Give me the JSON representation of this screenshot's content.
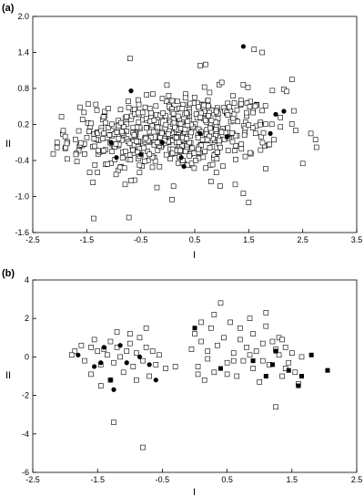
{
  "chart_data": [
    {
      "type": "scatter",
      "panel_label": "(a)",
      "xlabel": "I",
      "ylabel": "II",
      "xlim": [
        -2.5,
        3.5
      ],
      "ylim": [
        -1.6,
        2.0
      ],
      "x_ticks": [
        "-2.5",
        "-1.5",
        "-0.5",
        "0.5",
        "1.5",
        "2.5",
        "3.5"
      ],
      "y_ticks": [
        "-1.6",
        "-1.0",
        "-0.4",
        "0.2",
        "0.8",
        "1.4",
        "2.0"
      ],
      "grid": false,
      "markers": {
        "open": "open-square",
        "filled": "filled-circle"
      },
      "cloud_count": 560,
      "open_points": [
        [
          -1.9,
          0.0
        ],
        [
          -2.05,
          -0.1
        ],
        [
          -1.7,
          -0.3
        ],
        [
          -1.55,
          0.4
        ],
        [
          -0.7,
          1.3
        ],
        [
          -0.72,
          -1.35
        ],
        [
          0.7,
          1.2
        ],
        [
          0.6,
          1.18
        ],
        [
          1.6,
          1.45
        ],
        [
          1.75,
          1.4
        ],
        [
          2.3,
          0.95
        ],
        [
          2.2,
          0.75
        ],
        [
          2.65,
          0.05
        ],
        [
          2.5,
          -0.45
        ],
        [
          1.5,
          -1.1
        ],
        [
          1.4,
          -0.95
        ],
        [
          1.25,
          -0.8
        ],
        [
          0.08,
          -1.05
        ],
        [
          0.8,
          -0.75
        ],
        [
          -0.2,
          -0.85
        ],
        [
          1.0,
          0.9
        ],
        [
          0.9,
          -0.6
        ],
        [
          -1.3,
          -0.6
        ]
      ],
      "filled_points": [
        [
          1.4,
          1.5
        ],
        [
          -0.68,
          0.76
        ],
        [
          0.25,
          -0.35
        ],
        [
          0.3,
          -0.5
        ],
        [
          -0.1,
          -0.1
        ],
        [
          -0.5,
          -0.3
        ],
        [
          2.0,
          0.37
        ],
        [
          2.15,
          0.42
        ],
        [
          1.9,
          0.05
        ],
        [
          1.1,
          0.0
        ],
        [
          -1.05,
          -0.1
        ],
        [
          -0.95,
          -0.35
        ],
        [
          0.6,
          0.05
        ]
      ],
      "cloud": {
        "center": [
          0.1,
          0.05
        ],
        "spread": [
          0.95,
          0.32
        ],
        "tilt": 0.05
      }
    },
    {
      "type": "scatter",
      "panel_label": "(b)",
      "xlabel": "I",
      "ylabel": "II",
      "xlim": [
        -2.5,
        2.5
      ],
      "ylim": [
        -6,
        4
      ],
      "x_ticks": [
        "-2.5",
        "-1.5",
        "-0.5",
        "0.5",
        "1.5",
        "2.5"
      ],
      "y_ticks": [
        "-6",
        "-4",
        "-2",
        "0",
        "2",
        "4"
      ],
      "grid": false,
      "markers": {
        "open": "open-square",
        "filled": [
          "filled-circle",
          "filled-square"
        ]
      },
      "open_points": [
        [
          -1.85,
          0.3
        ],
        [
          -1.9,
          0.1
        ],
        [
          -1.75,
          0.6
        ],
        [
          -1.7,
          -0.2
        ],
        [
          -1.6,
          0.5
        ],
        [
          -1.55,
          0.9
        ],
        [
          -1.5,
          0.3
        ],
        [
          -1.45,
          -0.4
        ],
        [
          -1.4,
          0.4
        ],
        [
          -1.35,
          0.1
        ],
        [
          -1.3,
          0.8
        ],
        [
          -1.25,
          -0.3
        ],
        [
          -1.2,
          0.5
        ],
        [
          -1.15,
          0.0
        ],
        [
          -1.1,
          -0.8
        ],
        [
          -1.05,
          0.3
        ],
        [
          -1.0,
          0.7
        ],
        [
          -0.95,
          -0.5
        ],
        [
          -0.9,
          0.2
        ],
        [
          -0.85,
          1.0
        ],
        [
          -0.8,
          -0.2
        ],
        [
          -0.75,
          0.5
        ],
        [
          -0.7,
          -1.0
        ],
        [
          -0.65,
          0.3
        ],
        [
          -0.6,
          -0.4
        ],
        [
          -0.55,
          0.1
        ],
        [
          -1.45,
          -1.5
        ],
        [
          -1.3,
          -1.2
        ],
        [
          -1.25,
          -3.4
        ],
        [
          -0.8,
          -4.7
        ],
        [
          -0.75,
          1.5
        ],
        [
          -0.45,
          -0.6
        ],
        [
          -0.3,
          -0.5
        ],
        [
          -1.6,
          -0.9
        ],
        [
          -0.9,
          -1.2
        ],
        [
          -1.0,
          1.2
        ],
        [
          -1.2,
          1.3
        ],
        [
          0.0,
          1.2
        ],
        [
          0.05,
          -0.5
        ],
        [
          0.1,
          0.8
        ],
        [
          0.15,
          -1.2
        ],
        [
          0.2,
          0.3
        ],
        [
          0.25,
          1.5
        ],
        [
          0.3,
          -0.8
        ],
        [
          0.35,
          0.6
        ],
        [
          0.4,
          2.8
        ],
        [
          0.45,
          1.0
        ],
        [
          0.5,
          -0.3
        ],
        [
          0.55,
          1.8
        ],
        [
          0.6,
          0.2
        ],
        [
          0.65,
          -1.0
        ],
        [
          0.7,
          0.9
        ],
        [
          0.75,
          -0.2
        ],
        [
          0.8,
          0.5
        ],
        [
          0.85,
          2.0
        ],
        [
          0.9,
          -0.6
        ],
        [
          0.95,
          0.3
        ],
        [
          1.0,
          -1.3
        ],
        [
          1.05,
          0.7
        ],
        [
          1.1,
          2.3
        ],
        [
          1.15,
          -0.4
        ],
        [
          1.2,
          0.8
        ],
        [
          1.25,
          -2.6
        ],
        [
          1.3,
          0.1
        ],
        [
          1.35,
          -1.0
        ],
        [
          1.4,
          0.5
        ],
        [
          1.45,
          -0.3
        ],
        [
          1.5,
          0.2
        ],
        [
          1.55,
          -0.8
        ],
        [
          1.6,
          -1.4
        ],
        [
          1.65,
          0.0
        ],
        [
          0.1,
          1.8
        ],
        [
          0.3,
          2.2
        ],
        [
          0.7,
          1.5
        ],
        [
          1.1,
          1.6
        ],
        [
          0.5,
          -0.9
        ],
        [
          0.9,
          1.2
        ],
        [
          1.3,
          1.0
        ],
        [
          0.05,
          -0.9
        ],
        [
          -0.05,
          0.4
        ],
        [
          0.2,
          -0.1
        ],
        [
          0.6,
          -0.2
        ],
        [
          0.85,
          0.1
        ],
        [
          1.05,
          -0.2
        ],
        [
          1.25,
          0.4
        ],
        [
          1.4,
          -0.6
        ],
        [
          1.35,
          0.9
        ]
      ],
      "filled_points": [
        [
          -1.8,
          0.1
        ],
        [
          -1.55,
          -0.5
        ],
        [
          -1.45,
          -0.3
        ],
        [
          -1.4,
          0.5
        ],
        [
          -1.3,
          -1.2
        ],
        [
          -1.25,
          -1.7
        ],
        [
          -1.15,
          0.6
        ],
        [
          -1.05,
          -0.3
        ],
        [
          -0.85,
          0.0
        ],
        [
          -0.7,
          -0.4
        ],
        [
          -0.6,
          -1.2
        ],
        [
          0.0,
          1.5
        ],
        [
          0.4,
          -0.6
        ],
        [
          0.9,
          -0.2
        ],
        [
          1.1,
          -1.0
        ],
        [
          1.2,
          -0.4
        ],
        [
          1.25,
          0.3
        ],
        [
          1.45,
          -0.7
        ],
        [
          1.6,
          -1.5
        ],
        [
          1.65,
          -1.0
        ],
        [
          2.05,
          -0.7
        ],
        [
          1.8,
          0.1
        ]
      ],
      "filled_marker": [
        "circle",
        "circle",
        "circle",
        "circle",
        "circle",
        "circle",
        "circle",
        "circle",
        "circle",
        "circle",
        "circle",
        "square",
        "square",
        "square",
        "square",
        "square",
        "square",
        "square",
        "square",
        "square",
        "square",
        "square"
      ]
    }
  ]
}
